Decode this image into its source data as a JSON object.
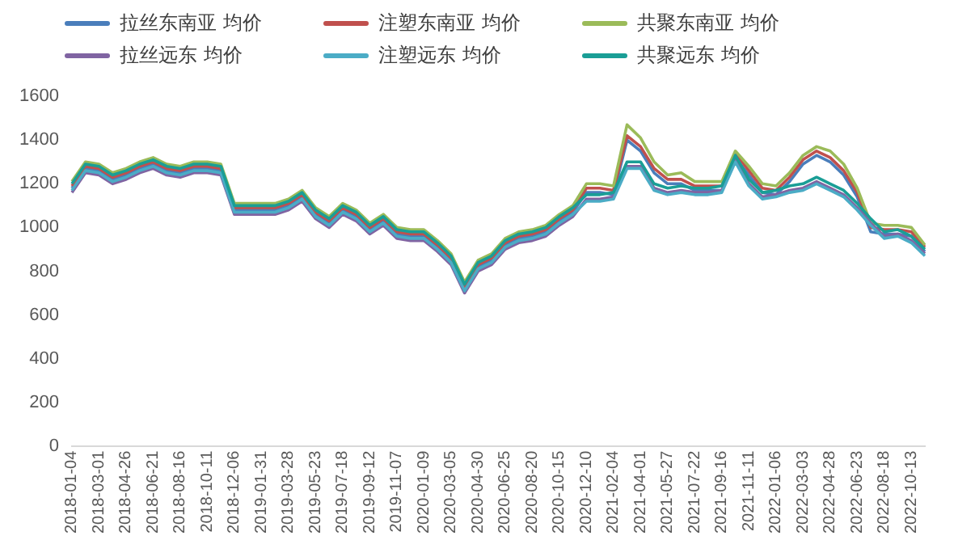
{
  "chart_data": {
    "type": "line",
    "categories": [
      "2018-01-04",
      null,
      "2018-03-01",
      null,
      "2018-04-26",
      null,
      "2018-06-21",
      null,
      "2018-08-16",
      null,
      "2018-10-11",
      null,
      "2018-12-06",
      null,
      "2019-01-31",
      null,
      "2019-03-28",
      null,
      "2019-05-23",
      null,
      "2019-07-18",
      null,
      "2019-09-12",
      null,
      "2019-11-07",
      null,
      "2020-01-09",
      null,
      "2020-03-05",
      null,
      "2020-04-30",
      null,
      "2020-06-25",
      null,
      "2020-08-20",
      null,
      "2020-10-15",
      null,
      "2020-12-10",
      null,
      "2021-02-04",
      null,
      "2021-04-01",
      null,
      "2021-05-27",
      null,
      "2021-07-22",
      null,
      "2021-09-16",
      null,
      "2021-11-11",
      null,
      "2022-01-06",
      null,
      "2022-03-03",
      null,
      "2022-04-28",
      null,
      "2022-06-23",
      null,
      "2022-08-18",
      null,
      "2022-10-13",
      null
    ],
    "ylim": [
      0,
      1600
    ],
    "yticks": [
      0,
      200,
      400,
      600,
      800,
      1000,
      1200,
      1400,
      1600
    ],
    "grid": false,
    "legend": "top",
    "marker": "none",
    "line_style": "solid",
    "series": [
      {
        "name": "拉丝东南亚 均价",
        "color": "#4a7ebb",
        "values": [
          1180,
          1270,
          1260,
          1220,
          1240,
          1270,
          1290,
          1260,
          1250,
          1270,
          1270,
          1260,
          1080,
          1080,
          1080,
          1080,
          1100,
          1140,
          1060,
          1020,
          1080,
          1050,
          990,
          1030,
          970,
          960,
          960,
          910,
          850,
          720,
          820,
          850,
          920,
          950,
          960,
          980,
          1030,
          1070,
          1160,
          1160,
          1150,
          1400,
          1350,
          1250,
          1200,
          1200,
          1170,
          1170,
          1170,
          1320,
          1240,
          1160,
          1150,
          1210,
          1290,
          1330,
          1300,
          1240,
          1140,
          980,
          970,
          970,
          960,
          890
        ]
      },
      {
        "name": "注塑东南亚 均价",
        "color": "#c0504d",
        "values": [
          1190,
          1280,
          1270,
          1230,
          1250,
          1280,
          1300,
          1270,
          1260,
          1280,
          1280,
          1270,
          1090,
          1090,
          1090,
          1090,
          1110,
          1150,
          1070,
          1030,
          1090,
          1060,
          1000,
          1040,
          980,
          970,
          970,
          920,
          860,
          730,
          830,
          860,
          930,
          960,
          970,
          990,
          1040,
          1080,
          1180,
          1180,
          1170,
          1420,
          1370,
          1270,
          1220,
          1220,
          1190,
          1190,
          1190,
          1340,
          1260,
          1180,
          1170,
          1230,
          1310,
          1350,
          1320,
          1260,
          1160,
          1000,
          990,
          990,
          980,
          910
        ]
      },
      {
        "name": "共聚东南亚 均价",
        "color": "#9bbb59",
        "values": [
          1210,
          1300,
          1290,
          1250,
          1270,
          1300,
          1320,
          1290,
          1280,
          1300,
          1300,
          1290,
          1110,
          1110,
          1110,
          1110,
          1130,
          1170,
          1090,
          1050,
          1110,
          1080,
          1020,
          1060,
          1000,
          990,
          990,
          940,
          880,
          750,
          850,
          880,
          950,
          980,
          990,
          1010,
          1060,
          1100,
          1200,
          1200,
          1190,
          1470,
          1410,
          1300,
          1240,
          1250,
          1210,
          1210,
          1210,
          1350,
          1280,
          1200,
          1190,
          1250,
          1330,
          1370,
          1350,
          1290,
          1180,
          1020,
          1010,
          1010,
          1000,
          920
        ]
      },
      {
        "name": "拉丝远东 均价",
        "color": "#8064a2",
        "values": [
          1160,
          1250,
          1240,
          1200,
          1220,
          1250,
          1270,
          1240,
          1230,
          1250,
          1250,
          1240,
          1060,
          1060,
          1060,
          1060,
          1080,
          1120,
          1040,
          1000,
          1060,
          1030,
          970,
          1010,
          950,
          940,
          940,
          890,
          830,
          700,
          800,
          830,
          900,
          930,
          940,
          960,
          1010,
          1050,
          1130,
          1130,
          1140,
          1280,
          1280,
          1180,
          1160,
          1170,
          1160,
          1160,
          1170,
          1310,
          1200,
          1140,
          1150,
          1170,
          1180,
          1210,
          1180,
          1150,
          1090,
          1020,
          960,
          970,
          940,
          880
        ]
      },
      {
        "name": "注塑远东 均价",
        "color": "#4bacc6",
        "values": [
          1170,
          1260,
          1250,
          1210,
          1230,
          1260,
          1280,
          1250,
          1240,
          1260,
          1260,
          1250,
          1070,
          1070,
          1070,
          1070,
          1090,
          1130,
          1050,
          1010,
          1070,
          1040,
          980,
          1020,
          960,
          950,
          950,
          900,
          840,
          710,
          810,
          840,
          910,
          940,
          950,
          970,
          1020,
          1060,
          1120,
          1120,
          1130,
          1270,
          1270,
          1170,
          1150,
          1160,
          1150,
          1150,
          1160,
          1300,
          1190,
          1130,
          1140,
          1160,
          1170,
          1200,
          1170,
          1140,
          1080,
          1010,
          950,
          960,
          930,
          870
        ]
      },
      {
        "name": "共聚远东 均价",
        "color": "#1a9e96",
        "values": [
          1200,
          1290,
          1280,
          1240,
          1260,
          1290,
          1310,
          1280,
          1270,
          1290,
          1290,
          1280,
          1100,
          1100,
          1100,
          1100,
          1120,
          1160,
          1080,
          1040,
          1100,
          1070,
          1010,
          1050,
          990,
          980,
          980,
          930,
          870,
          740,
          840,
          870,
          940,
          970,
          980,
          1000,
          1050,
          1090,
          1150,
          1150,
          1160,
          1300,
          1300,
          1200,
          1180,
          1190,
          1180,
          1180,
          1190,
          1330,
          1220,
          1160,
          1170,
          1190,
          1200,
          1230,
          1200,
          1170,
          1110,
          1040,
          980,
          990,
          960,
          900
        ]
      }
    ]
  }
}
